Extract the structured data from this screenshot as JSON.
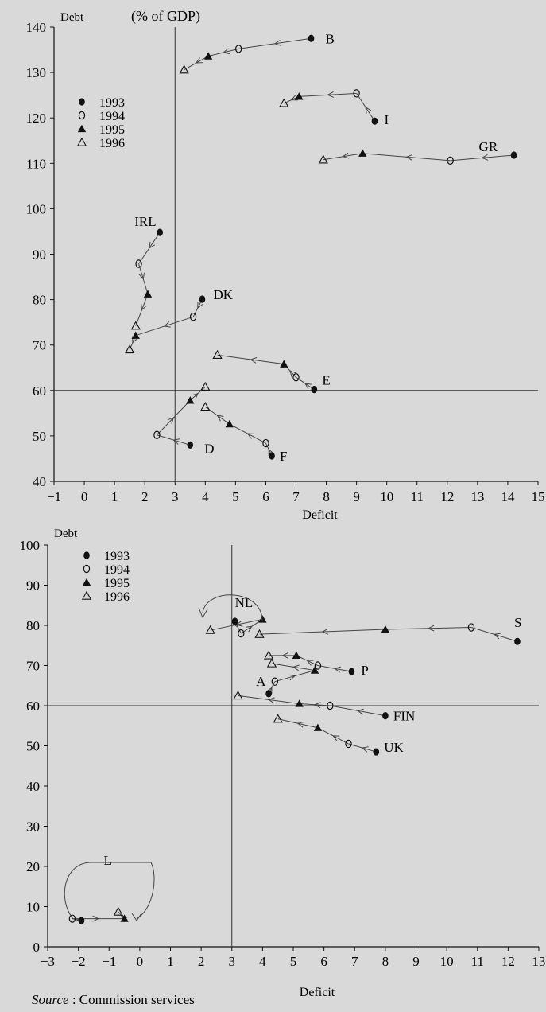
{
  "page": {
    "source_label": "Source",
    "source_text": " : Commission services"
  },
  "chart_data": [
    {
      "type": "scatter",
      "title": "(% of GDP)",
      "xlabel": "Deficit",
      "ylabel": "Debt",
      "xlim": [
        -1,
        15
      ],
      "ylim": [
        40,
        140
      ],
      "xticks": [
        -1,
        0,
        1,
        2,
        3,
        4,
        5,
        6,
        7,
        8,
        9,
        10,
        11,
        12,
        13,
        14,
        15
      ],
      "yticks": [
        40,
        50,
        60,
        70,
        80,
        90,
        100,
        110,
        120,
        130,
        140
      ],
      "reference_lines": {
        "x": 3,
        "y": 60
      },
      "legend": {
        "placement": "top-left",
        "entries": [
          {
            "label": "1993",
            "marker": "filled-circle"
          },
          {
            "label": "1994",
            "marker": "open-circle"
          },
          {
            "label": "1995",
            "marker": "filled-triangle"
          },
          {
            "label": "1996",
            "marker": "open-triangle"
          }
        ]
      },
      "series": [
        {
          "name": "B",
          "points": [
            [
              7.5,
              137.5
            ],
            [
              5.1,
              135.2
            ],
            [
              4.1,
              133.6
            ],
            [
              3.3,
              130.6
            ]
          ]
        },
        {
          "name": "I",
          "points": [
            [
              9.6,
              119.3
            ],
            [
              9.0,
              125.4
            ],
            [
              7.1,
              124.7
            ],
            [
              6.6,
              123.2
            ]
          ]
        },
        {
          "name": "GR",
          "points": [
            [
              14.2,
              111.8
            ],
            [
              12.1,
              110.6
            ],
            [
              9.2,
              112.2
            ],
            [
              7.9,
              110.8
            ]
          ]
        },
        {
          "name": "IRL",
          "points": [
            [
              2.5,
              94.8
            ],
            [
              1.8,
              87.9
            ],
            [
              2.1,
              81.2
            ],
            [
              1.7,
              74.2
            ]
          ]
        },
        {
          "name": "DK",
          "points": [
            [
              3.9,
              80.1
            ],
            [
              3.6,
              76.2
            ],
            [
              1.7,
              72.1
            ],
            [
              1.5,
              69.0
            ]
          ]
        },
        {
          "name": "E",
          "points": [
            [
              7.6,
              60.2
            ],
            [
              7.0,
              62.9
            ],
            [
              6.6,
              65.8
            ],
            [
              4.4,
              67.8
            ]
          ]
        },
        {
          "name": "D",
          "points": [
            [
              3.5,
              48.0
            ],
            [
              2.4,
              50.2
            ],
            [
              3.5,
              57.8
            ],
            [
              4.0,
              60.8
            ]
          ]
        },
        {
          "name": "F",
          "points": [
            [
              6.2,
              45.6
            ],
            [
              6.0,
              48.4
            ],
            [
              4.8,
              52.6
            ],
            [
              4.0,
              56.4
            ]
          ]
        }
      ]
    },
    {
      "type": "scatter",
      "title": "",
      "xlabel": "Deficit",
      "ylabel": "Debt",
      "xlim": [
        -3,
        13
      ],
      "ylim": [
        0,
        100
      ],
      "xticks": [
        -3,
        -2,
        -1,
        0,
        1,
        2,
        3,
        4,
        5,
        6,
        7,
        8,
        9,
        10,
        11,
        12,
        13
      ],
      "yticks": [
        0,
        10,
        20,
        30,
        40,
        50,
        60,
        70,
        80,
        90,
        100
      ],
      "reference_lines": {
        "x": 3,
        "y": 60
      },
      "legend": {
        "placement": "top-left",
        "entries": [
          {
            "label": "1993",
            "marker": "filled-circle"
          },
          {
            "label": "1994",
            "marker": "open-circle"
          },
          {
            "label": "1995",
            "marker": "filled-triangle"
          },
          {
            "label": "1996",
            "marker": "open-triangle"
          }
        ]
      },
      "series": [
        {
          "name": "NL",
          "points": [
            [
              3.1,
              81.0
            ],
            [
              3.3,
              78.0
            ],
            [
              4.0,
              81.5
            ],
            [
              2.3,
              78.8
            ]
          ]
        },
        {
          "name": "S",
          "points": [
            [
              12.3,
              76.0
            ],
            [
              10.8,
              79.5
            ],
            [
              8.0,
              79.0
            ],
            [
              3.9,
              77.8
            ]
          ]
        },
        {
          "name": "P",
          "points": [
            [
              6.9,
              68.5
            ],
            [
              5.8,
              70.0
            ],
            [
              5.1,
              72.5
            ],
            [
              4.2,
              72.5
            ]
          ]
        },
        {
          "name": "A",
          "points": [
            [
              4.2,
              63.0
            ],
            [
              4.4,
              66.0
            ],
            [
              5.7,
              68.8
            ],
            [
              4.3,
              70.5
            ]
          ]
        },
        {
          "name": "FIN",
          "points": [
            [
              8.0,
              57.5
            ],
            [
              6.2,
              60.0
            ],
            [
              5.2,
              60.5
            ],
            [
              3.2,
              62.5
            ]
          ]
        },
        {
          "name": "UK",
          "points": [
            [
              7.7,
              48.5
            ],
            [
              6.8,
              50.5
            ],
            [
              5.8,
              54.5
            ],
            [
              4.5,
              56.7
            ]
          ]
        },
        {
          "name": "L",
          "points": [
            [
              -1.9,
              6.5
            ],
            [
              -2.2,
              7.0
            ],
            [
              -0.5,
              7.0
            ],
            [
              -0.7,
              8.7
            ]
          ]
        }
      ]
    }
  ]
}
